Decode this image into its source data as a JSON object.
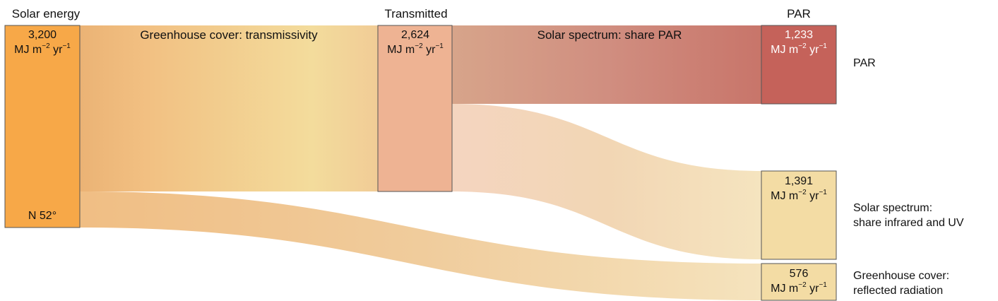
{
  "column_titles": {
    "source": "Solar energy",
    "middle": "Transmitted",
    "target": "PAR"
  },
  "units": {
    "prefix": "MJ m",
    "exp1": "−2",
    "mid": " yr",
    "exp2": "−1"
  },
  "nodes": {
    "solar": {
      "value": "3,200",
      "location": "N 52°",
      "color": "#f7a848"
    },
    "transmitted": {
      "value": "2,624",
      "color": "#eeb393"
    },
    "par": {
      "value": "1,233",
      "color": "#c5625a",
      "label_color": "#ffffff"
    },
    "ir_uv": {
      "value": "1,391",
      "color": "#f3dca4"
    },
    "reflected": {
      "value": "576",
      "color": "#f3dca4"
    }
  },
  "flows": {
    "transmissivity": {
      "label": "Greenhouse cover: transmissivity"
    },
    "share_par": {
      "label": "Solar spectrum: share PAR"
    }
  },
  "side_labels": {
    "par": "PAR",
    "ir_uv": [
      "Solar spectrum:",
      "share infrared and UV"
    ],
    "reflected": [
      "Greenhouse cover:",
      "reflected radiation"
    ]
  },
  "chart_data": {
    "type": "sankey",
    "unit": "MJ m−2 yr−1",
    "nodes": [
      {
        "id": "solar",
        "name": "Solar energy",
        "value": 3200
      },
      {
        "id": "transmitted",
        "name": "Transmitted",
        "value": 2624
      },
      {
        "id": "par",
        "name": "PAR",
        "value": 1233
      },
      {
        "id": "ir_uv",
        "name": "Solar spectrum: share infrared and UV",
        "value": 1391
      },
      {
        "id": "reflected",
        "name": "Greenhouse cover: reflected radiation",
        "value": 576
      }
    ],
    "links": [
      {
        "source": "solar",
        "target": "transmitted",
        "value": 2624,
        "label": "Greenhouse cover: transmissivity"
      },
      {
        "source": "solar",
        "target": "reflected",
        "value": 576
      },
      {
        "source": "transmitted",
        "target": "par",
        "value": 1233,
        "label": "Solar spectrum: share PAR"
      },
      {
        "source": "transmitted",
        "target": "ir_uv",
        "value": 1391
      }
    ]
  }
}
